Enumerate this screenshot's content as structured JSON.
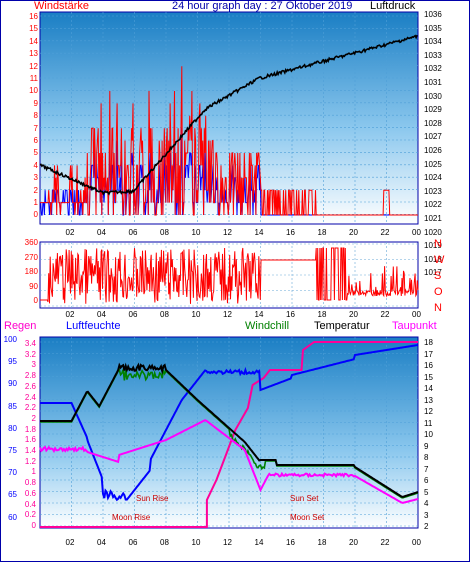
{
  "header": {
    "left_title": "Windstärke",
    "center_title": "24 hour graph day : 27 Oktober 2019",
    "right_title": "Luftdruck"
  },
  "top_panel": {
    "wind_ticks": [
      "16",
      "15",
      "14",
      "13",
      "12",
      "11",
      "10",
      "9",
      "8",
      "7",
      "6",
      "5",
      "4",
      "3",
      "2",
      "1",
      "0"
    ],
    "pressure_ticks": [
      "1036",
      "1035",
      "1034",
      "1033",
      "1032",
      "1031",
      "1030",
      "1029",
      "1028",
      "1027",
      "1026",
      "1025",
      "1024",
      "1023",
      "1022",
      "1021",
      "1020",
      "1019",
      "1018",
      "1017"
    ],
    "hour_ticks": [
      "02",
      "04",
      "06",
      "08",
      "10",
      "12",
      "14",
      "16",
      "18",
      "20",
      "22",
      "00"
    ]
  },
  "direction_panel": {
    "degree_ticks": [
      "360",
      "270",
      "180",
      "90",
      "0"
    ],
    "compass_letters": [
      "N",
      "W",
      "S",
      "O",
      "N"
    ],
    "hour_ticks": [
      "02",
      "04",
      "06",
      "08",
      "10",
      "12",
      "14",
      "16",
      "18",
      "20",
      "22",
      "00"
    ]
  },
  "bottom_panel": {
    "labels": {
      "regen": "Regen",
      "luftfeuchte": "Luftfeuchte",
      "windchill": "Windchill",
      "temperatur": "Temperatur",
      "taupunkt": "Taupunkt"
    },
    "humidity_ticks": [
      "100",
      "95",
      "90",
      "85",
      "80",
      "75",
      "70",
      "65",
      "60"
    ],
    "rain_ticks": [
      "3.4",
      "3.2",
      "3",
      "2.8",
      "2.6",
      "2.4",
      "2.2",
      "2",
      "1.8",
      "1.6",
      "1.4",
      "1.2",
      "1",
      "0.8",
      "0.6",
      "0.4",
      "0.2",
      "0"
    ],
    "temp_ticks": [
      "18",
      "17",
      "16",
      "15",
      "14",
      "13",
      "12",
      "11",
      "10",
      "9",
      "8",
      "7",
      "6",
      "5",
      "4",
      "3",
      "2"
    ],
    "annotations": {
      "sun_rise": "Sun Rise",
      "moon_rise": "Moon Rise",
      "sun_set": "Sun Set",
      "moon_set": "Moon Set"
    },
    "hour_ticks": [
      "02",
      "04",
      "06",
      "08",
      "10",
      "12",
      "14",
      "16",
      "18",
      "20",
      "22",
      "00"
    ]
  },
  "colors": {
    "wind": "#ff0000",
    "gust": "#0000ff",
    "pressure": "#000000",
    "humidity": "#0000ff",
    "temperature": "#000000",
    "windchill": "#008000",
    "dewpoint": "#ff00ff",
    "rain": "#ff0099",
    "frame": "#0000aa"
  }
}
